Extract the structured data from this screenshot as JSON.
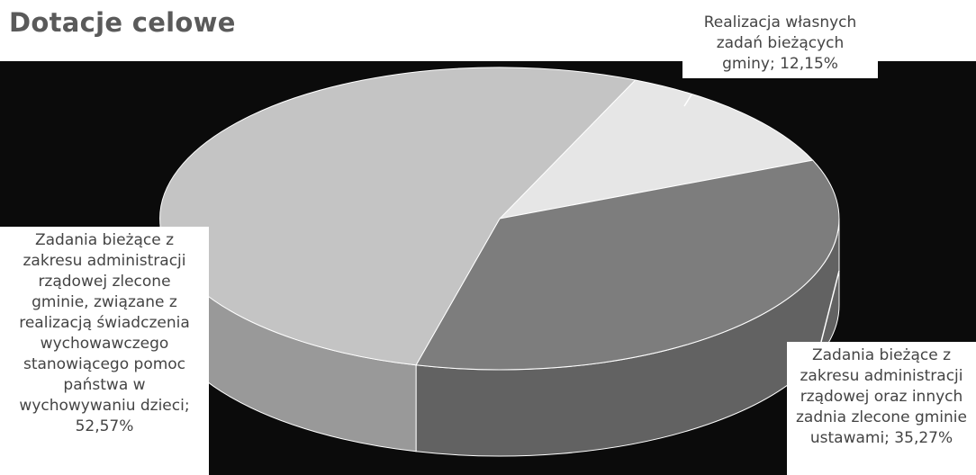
{
  "chart_data": {
    "type": "pie",
    "title": "Dotacje celowe",
    "series": [
      {
        "name": "",
        "slices": [
          {
            "label": "Realizacja własnych\nzadań bieżących\ngminy",
            "value": 12.15,
            "data_label": "Realizacja własnych\nzadań bieżących\ngminy; 12,15%",
            "color": "#e6e6e6"
          },
          {
            "label": "Zadania bieżące z\nzakresu administracji\nrządowej oraz innych\nzadnia zlecone gminie\nustawami",
            "value": 35.27,
            "data_label": "Zadania bieżące z\nzakresu administracji\nrządowej oraz innych\nzadnia zlecone gminie\nustawami; 35,27%",
            "color": "#7d7d7d"
          },
          {
            "label": "Zadania bieżące z\nzakresu administracji\nrządowej zlecone\ngminie, związane z\nrealizacją świadczenia\nwychowawczego\nstanowiącego pomoc\npaństwa w\nwychowywaniu dzieci",
            "value": 52.57,
            "data_label": "Zadania bieżące z\nzakresu administracji\nrządowej zlecone\ngminie, związane z\nrealizacją świadczenia\nwychowawczego\nstanowiącego pomoc\npaństwa w\nwychowywaniu dzieci;\n52,57%",
            "color": "#c4c4c4"
          }
        ]
      }
    ],
    "style": "3d",
    "legend": "none",
    "background": "#0b0b0b"
  }
}
